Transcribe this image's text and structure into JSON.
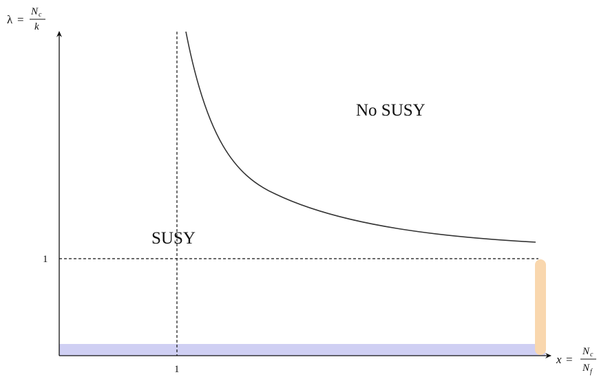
{
  "diagram": {
    "y_axis_label": {
      "symbol": "λ",
      "equals": "=",
      "numerator": "N",
      "numerator_sub": "c",
      "denominator": "k"
    },
    "x_axis_label": {
      "symbol": "x",
      "equals": "=",
      "numerator": "N",
      "numerator_sub": "c",
      "denominator": "N",
      "denominator_sub": "f"
    },
    "x_tick_label": "1",
    "y_tick_label": "1",
    "regions": {
      "upper": "No SUSY",
      "lower": "SUSY"
    },
    "colors": {
      "axis": "#111111",
      "curve": "#333333",
      "dashed": "#111111",
      "blue_band": "#cfcff3",
      "orange_band": "#f9d7ae"
    }
  }
}
